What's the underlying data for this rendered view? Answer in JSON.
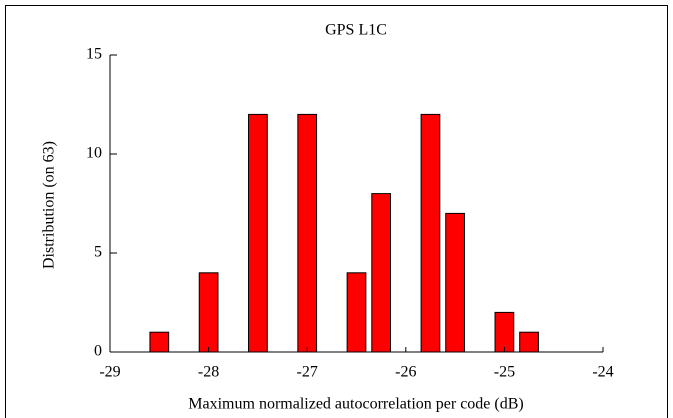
{
  "chart_data": {
    "type": "bar",
    "title": "GPS L1C",
    "x_label": "Maximum normalized autocorrelation per code (dB)",
    "y_label": "Distribution (on 63)",
    "x": [
      -28.5,
      -28,
      -27.5,
      -27,
      -26.5,
      -26.25,
      -25.75,
      -25.5,
      -25,
      -24.75
    ],
    "values": [
      1,
      4,
      12,
      12,
      4,
      8,
      12,
      7,
      2,
      1
    ],
    "color": "#ff0000",
    "xlim": [
      -29,
      -24
    ],
    "xticks": [
      -29,
      -28,
      -27,
      -26,
      -25,
      -24
    ],
    "ylim": [
      0,
      15
    ],
    "yticks": [
      0,
      5,
      10,
      15
    ],
    "grid": false
  }
}
